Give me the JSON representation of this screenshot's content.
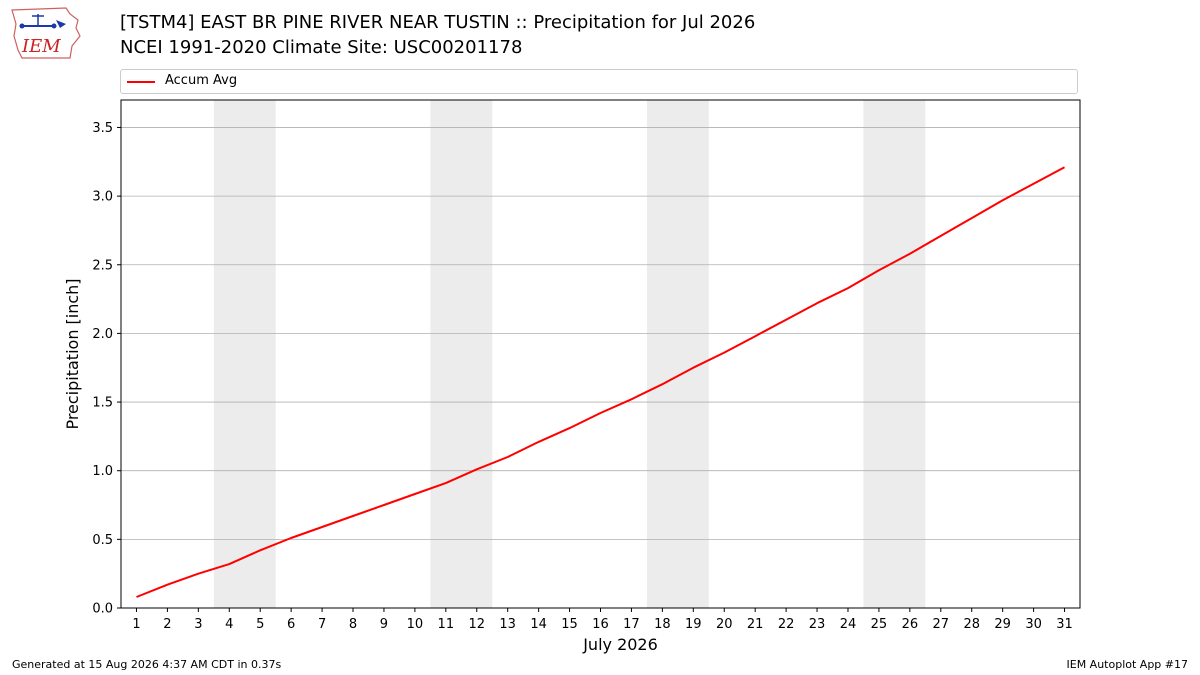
{
  "header": {
    "title_line1": "[TSTM4] EAST BR PINE RIVER NEAR TUSTIN :: Precipitation for Jul 2026",
    "title_line2": "NCEI 1991-2020 Climate Site: USC00201178"
  },
  "logo": {
    "text": "IEM",
    "icon": "iem-logo-icon"
  },
  "legend": {
    "label": "Accum Avg",
    "color": "#ff0000"
  },
  "footer": {
    "left": "Generated at 15 Aug 2026 4:37 AM CDT in 0.37s",
    "right": "IEM Autoplot App #17"
  },
  "colors": {
    "line": "#ff0000",
    "weekend_band": "#ececec",
    "grid": "#b0b0b0"
  },
  "chart_data": {
    "type": "line",
    "xlabel": "July 2026",
    "ylabel": "Precipitation [inch]",
    "xlim": [
      0.5,
      31.5
    ],
    "ylim": [
      0,
      3.7
    ],
    "yticks": [
      0.0,
      0.5,
      1.0,
      1.5,
      2.0,
      2.5,
      3.0,
      3.5
    ],
    "x": [
      1,
      2,
      3,
      4,
      5,
      6,
      7,
      8,
      9,
      10,
      11,
      12,
      13,
      14,
      15,
      16,
      17,
      18,
      19,
      20,
      21,
      22,
      23,
      24,
      25,
      26,
      27,
      28,
      29,
      30,
      31
    ],
    "weekend_days": [
      [
        4,
        5
      ],
      [
        11,
        12
      ],
      [
        18,
        19
      ],
      [
        25,
        26
      ]
    ],
    "grid": "horizontal",
    "series": [
      {
        "name": "Accum Avg",
        "color": "#ff0000",
        "values": [
          0.08,
          0.17,
          0.25,
          0.32,
          0.42,
          0.51,
          0.59,
          0.67,
          0.75,
          0.83,
          0.91,
          1.01,
          1.1,
          1.21,
          1.31,
          1.42,
          1.52,
          1.63,
          1.75,
          1.86,
          1.98,
          2.1,
          2.22,
          2.33,
          2.46,
          2.58,
          2.71,
          2.84,
          2.97,
          3.09,
          3.21
        ]
      }
    ]
  }
}
